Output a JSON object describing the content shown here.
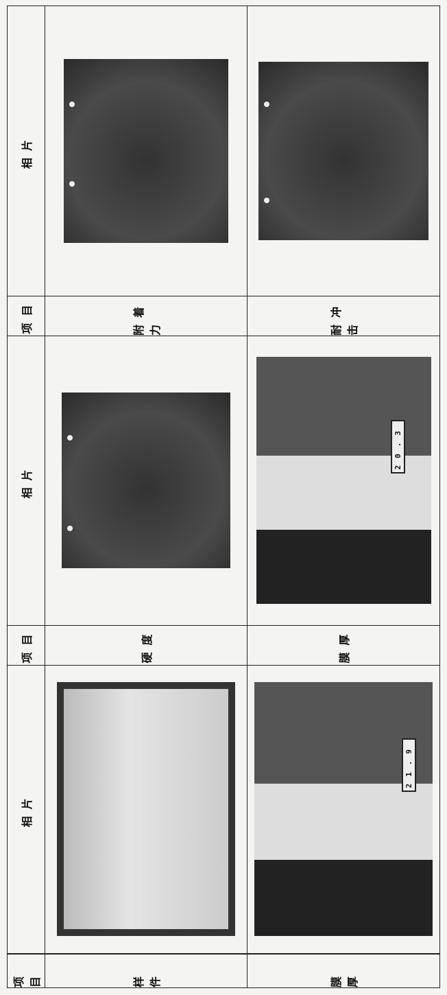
{
  "table": {
    "header": [
      "项目",
      "相片",
      "项目",
      "相片",
      "项目",
      "相片"
    ],
    "rows": [
      [
        "样件",
        "硬度",
        "附着力"
      ],
      [
        "膜厚",
        "膜厚",
        "耐冲击"
      ]
    ]
  },
  "readings": [
    "21.9",
    "20.3"
  ]
}
